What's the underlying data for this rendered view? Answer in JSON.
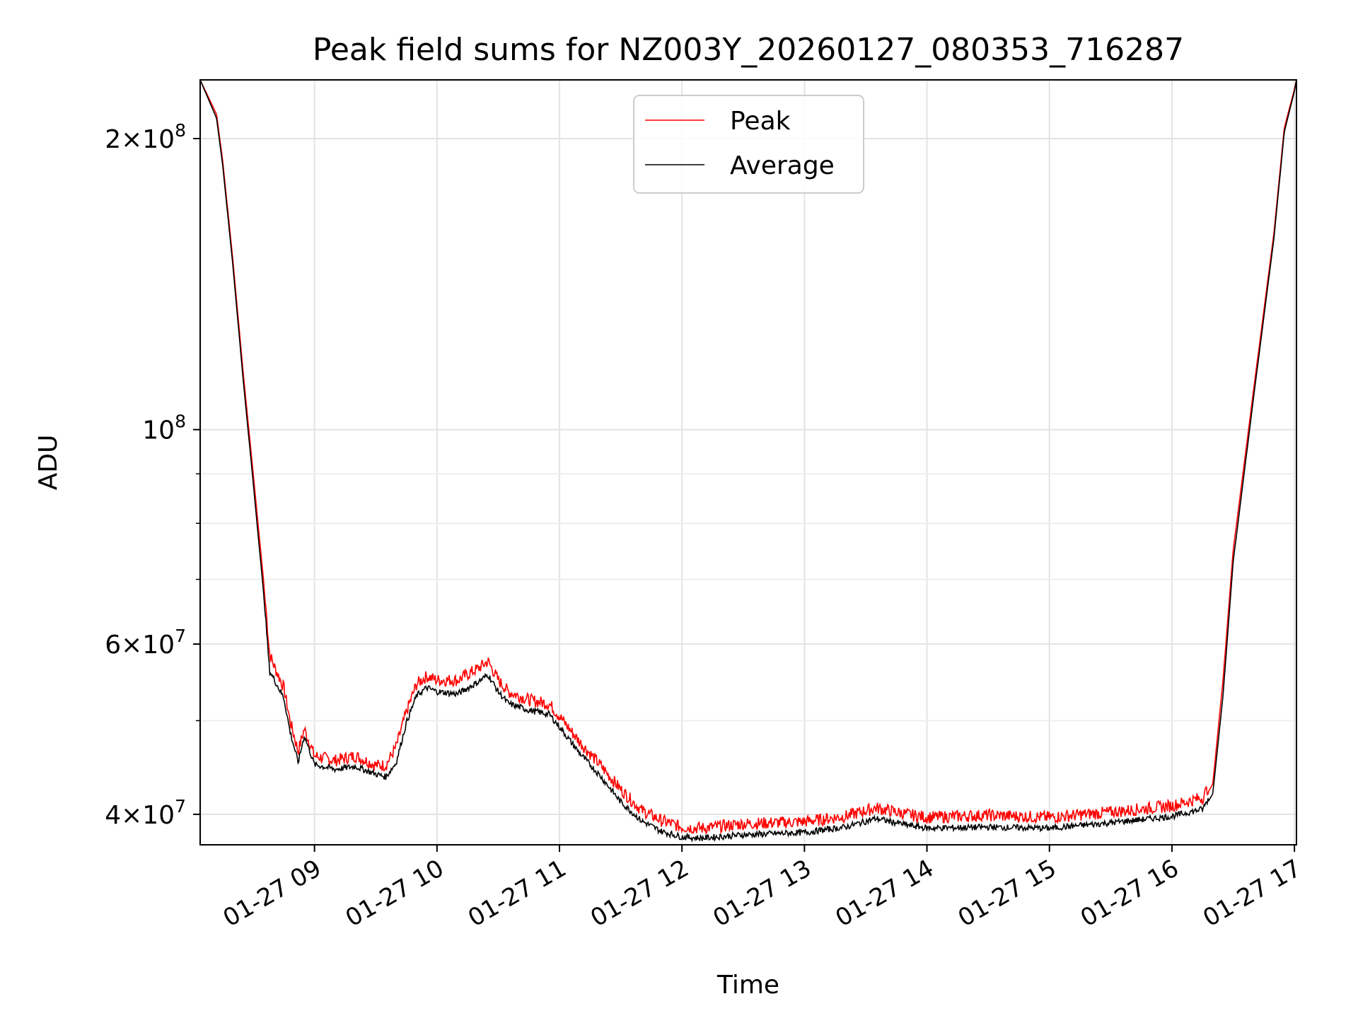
{
  "chart_data": {
    "type": "line",
    "title": "Peak field sums for NZ003Y_20260127_080353_716287",
    "xlabel": "Time",
    "ylabel": "ADU",
    "yscale": "log",
    "xlim": [
      "2026-01-27 08:04",
      "2026-01-27 17:01"
    ],
    "ylim": [
      37200000,
      230000000
    ],
    "grid": true,
    "legend_loc": "upper center",
    "x_ticks": [
      {
        "value": "2026-01-27 09:00",
        "label": "01-27 09"
      },
      {
        "value": "2026-01-27 10:00",
        "label": "01-27 10"
      },
      {
        "value": "2026-01-27 11:00",
        "label": "01-27 11"
      },
      {
        "value": "2026-01-27 12:00",
        "label": "01-27 12"
      },
      {
        "value": "2026-01-27 13:00",
        "label": "01-27 13"
      },
      {
        "value": "2026-01-27 14:00",
        "label": "01-27 14"
      },
      {
        "value": "2026-01-27 15:00",
        "label": "01-27 15"
      },
      {
        "value": "2026-01-27 16:00",
        "label": "01-27 16"
      },
      {
        "value": "2026-01-27 17:00",
        "label": "01-27 17"
      }
    ],
    "y_ticks": [
      {
        "value": 40000000,
        "mant": "4",
        "exp": "7"
      },
      {
        "value": 60000000,
        "mant": "6",
        "exp": "7"
      },
      {
        "value": 100000000,
        "mant": "",
        "exp": "8"
      },
      {
        "value": 200000000,
        "mant": "2",
        "exp": "8"
      }
    ],
    "y_minor": [
      50000000,
      70000000,
      80000000,
      90000000
    ],
    "series": [
      {
        "name": "Peak",
        "color": "#ff0000",
        "noise": 0.03,
        "x": [
          "2026-01-27 08:04",
          "2026-01-27 08:12",
          "2026-01-27 08:15",
          "2026-01-27 08:20",
          "2026-01-27 08:25",
          "2026-01-27 08:30",
          "2026-01-27 08:35",
          "2026-01-27 08:38",
          "2026-01-27 08:40",
          "2026-01-27 08:45",
          "2026-01-27 08:48",
          "2026-01-27 08:52",
          "2026-01-27 08:55",
          "2026-01-27 09:00",
          "2026-01-27 09:10",
          "2026-01-27 09:20",
          "2026-01-27 09:30",
          "2026-01-27 09:35",
          "2026-01-27 09:40",
          "2026-01-27 09:45",
          "2026-01-27 09:50",
          "2026-01-27 09:55",
          "2026-01-27 10:00",
          "2026-01-27 10:10",
          "2026-01-27 10:20",
          "2026-01-27 10:25",
          "2026-01-27 10:30",
          "2026-01-27 10:35",
          "2026-01-27 10:45",
          "2026-01-27 10:55",
          "2026-01-27 11:00",
          "2026-01-27 11:10",
          "2026-01-27 11:20",
          "2026-01-27 11:30",
          "2026-01-27 11:40",
          "2026-01-27 11:50",
          "2026-01-27 12:00",
          "2026-01-27 12:10",
          "2026-01-27 12:30",
          "2026-01-27 13:00",
          "2026-01-27 13:20",
          "2026-01-27 13:35",
          "2026-01-27 13:50",
          "2026-01-27 14:00",
          "2026-01-27 14:30",
          "2026-01-27 15:00",
          "2026-01-27 15:30",
          "2026-01-27 16:00",
          "2026-01-27 16:15",
          "2026-01-27 16:20",
          "2026-01-27 16:25",
          "2026-01-27 16:30",
          "2026-01-27 16:40",
          "2026-01-27 16:50",
          "2026-01-27 16:55",
          "2026-01-27 17:00",
          "2026-01-27 17:01"
        ],
        "y": [
          230000000,
          212000000,
          190000000,
          150000000,
          115000000,
          90000000,
          70000000,
          58000000,
          56500000,
          53500000,
          49500000,
          46000000,
          48500000,
          45500000,
          45000000,
          45500000,
          44500000,
          44500000,
          46500000,
          50500000,
          54000000,
          55000000,
          54500000,
          54500000,
          56000000,
          57000000,
          54500000,
          53000000,
          52000000,
          51500000,
          50000000,
          47000000,
          44500000,
          42000000,
          40000000,
          39000000,
          38400000,
          38300000,
          38700000,
          38900000,
          39400000,
          40200000,
          39600000,
          39300000,
          39500000,
          39300000,
          39800000,
          40400000,
          41200000,
          43000000,
          55000000,
          75000000,
          110000000,
          160000000,
          205000000,
          225000000,
          230000000
        ]
      },
      {
        "name": "Average",
        "color": "#000000",
        "noise": 0.015,
        "x": [
          "2026-01-27 08:04",
          "2026-01-27 08:12",
          "2026-01-27 08:15",
          "2026-01-27 08:20",
          "2026-01-27 08:25",
          "2026-01-27 08:30",
          "2026-01-27 08:35",
          "2026-01-27 08:38",
          "2026-01-27 08:40",
          "2026-01-27 08:45",
          "2026-01-27 08:48",
          "2026-01-27 08:52",
          "2026-01-27 08:55",
          "2026-01-27 09:00",
          "2026-01-27 09:10",
          "2026-01-27 09:20",
          "2026-01-27 09:30",
          "2026-01-27 09:35",
          "2026-01-27 09:40",
          "2026-01-27 09:45",
          "2026-01-27 09:50",
          "2026-01-27 09:55",
          "2026-01-27 10:00",
          "2026-01-27 10:10",
          "2026-01-27 10:20",
          "2026-01-27 10:25",
          "2026-01-27 10:30",
          "2026-01-27 10:35",
          "2026-01-27 10:45",
          "2026-01-27 10:55",
          "2026-01-27 11:00",
          "2026-01-27 11:10",
          "2026-01-27 11:20",
          "2026-01-27 11:30",
          "2026-01-27 11:40",
          "2026-01-27 11:50",
          "2026-01-27 12:00",
          "2026-01-27 12:10",
          "2026-01-27 12:30",
          "2026-01-27 13:00",
          "2026-01-27 13:20",
          "2026-01-27 13:35",
          "2026-01-27 13:50",
          "2026-01-27 14:00",
          "2026-01-27 14:30",
          "2026-01-27 15:00",
          "2026-01-27 15:30",
          "2026-01-27 16:00",
          "2026-01-27 16:15",
          "2026-01-27 16:20",
          "2026-01-27 16:25",
          "2026-01-27 16:30",
          "2026-01-27 16:40",
          "2026-01-27 16:50",
          "2026-01-27 16:55",
          "2026-01-27 17:00",
          "2026-01-27 17:01"
        ],
        "y": [
          230000000,
          210000000,
          188000000,
          148000000,
          113000000,
          88000000,
          68000000,
          56000000,
          55000000,
          52500000,
          48500000,
          45000000,
          48000000,
          44800000,
          44300000,
          44600000,
          43800000,
          43500000,
          45000000,
          49500000,
          52800000,
          53800000,
          53300000,
          53000000,
          54500000,
          55500000,
          53300000,
          51800000,
          51000000,
          50500000,
          49000000,
          46000000,
          43600000,
          41000000,
          39200000,
          38200000,
          37700000,
          37600000,
          37900000,
          38100000,
          38600000,
          39400000,
          38800000,
          38500000,
          38600000,
          38500000,
          39000000,
          39600000,
          40300000,
          42000000,
          53000000,
          73000000,
          108000000,
          158000000,
          203000000,
          224000000,
          230000000
        ]
      }
    ]
  }
}
